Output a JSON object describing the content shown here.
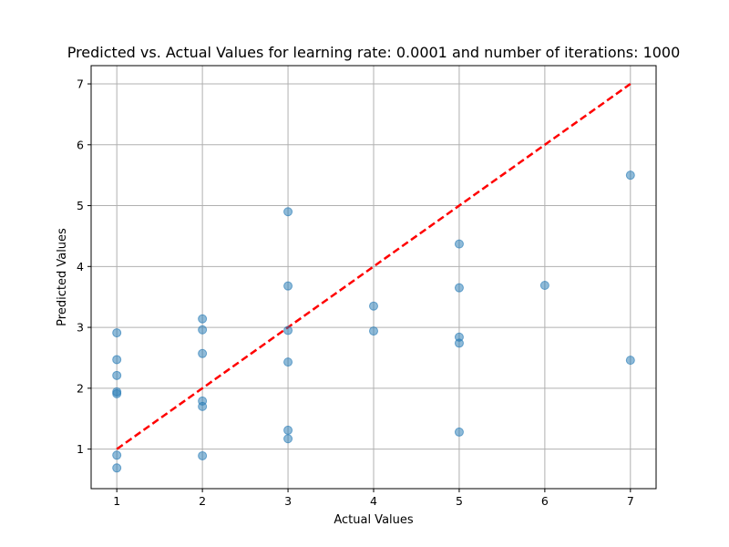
{
  "chart_data": {
    "type": "scatter",
    "title": "Predicted vs. Actual Values for learning rate: 0.0001 and number of iterations: 1000",
    "xlabel": "Actual Values",
    "ylabel": "Predicted Values",
    "xlim": [
      0.7,
      7.3
    ],
    "ylim": [
      0.35,
      7.3
    ],
    "xticks": [
      1,
      2,
      3,
      4,
      5,
      6,
      7
    ],
    "yticks": [
      1,
      2,
      3,
      4,
      5,
      6,
      7
    ],
    "grid": true,
    "colors": {
      "points": "#1f77b4",
      "reference_line": "#ff0000",
      "grid": "#b0b0b0"
    },
    "reference_line": {
      "x": [
        1,
        7
      ],
      "y": [
        1,
        7
      ],
      "style": "dashed"
    },
    "points": [
      {
        "x": 1,
        "y": 2.91
      },
      {
        "x": 1,
        "y": 2.47
      },
      {
        "x": 1,
        "y": 2.21
      },
      {
        "x": 1,
        "y": 1.94
      },
      {
        "x": 1,
        "y": 1.91
      },
      {
        "x": 1,
        "y": 0.9
      },
      {
        "x": 1,
        "y": 0.69
      },
      {
        "x": 2,
        "y": 3.14
      },
      {
        "x": 2,
        "y": 2.96
      },
      {
        "x": 2,
        "y": 2.57
      },
      {
        "x": 2,
        "y": 1.79
      },
      {
        "x": 2,
        "y": 1.7
      },
      {
        "x": 2,
        "y": 0.89
      },
      {
        "x": 3,
        "y": 4.9
      },
      {
        "x": 3,
        "y": 3.68
      },
      {
        "x": 3,
        "y": 2.95
      },
      {
        "x": 3,
        "y": 2.43
      },
      {
        "x": 3,
        "y": 1.31
      },
      {
        "x": 3,
        "y": 1.17
      },
      {
        "x": 4,
        "y": 3.35
      },
      {
        "x": 4,
        "y": 2.94
      },
      {
        "x": 5,
        "y": 4.37
      },
      {
        "x": 5,
        "y": 3.65
      },
      {
        "x": 5,
        "y": 2.84
      },
      {
        "x": 5,
        "y": 2.74
      },
      {
        "x": 5,
        "y": 1.28
      },
      {
        "x": 6,
        "y": 3.69
      },
      {
        "x": 7,
        "y": 5.5
      },
      {
        "x": 7,
        "y": 2.46
      }
    ]
  }
}
